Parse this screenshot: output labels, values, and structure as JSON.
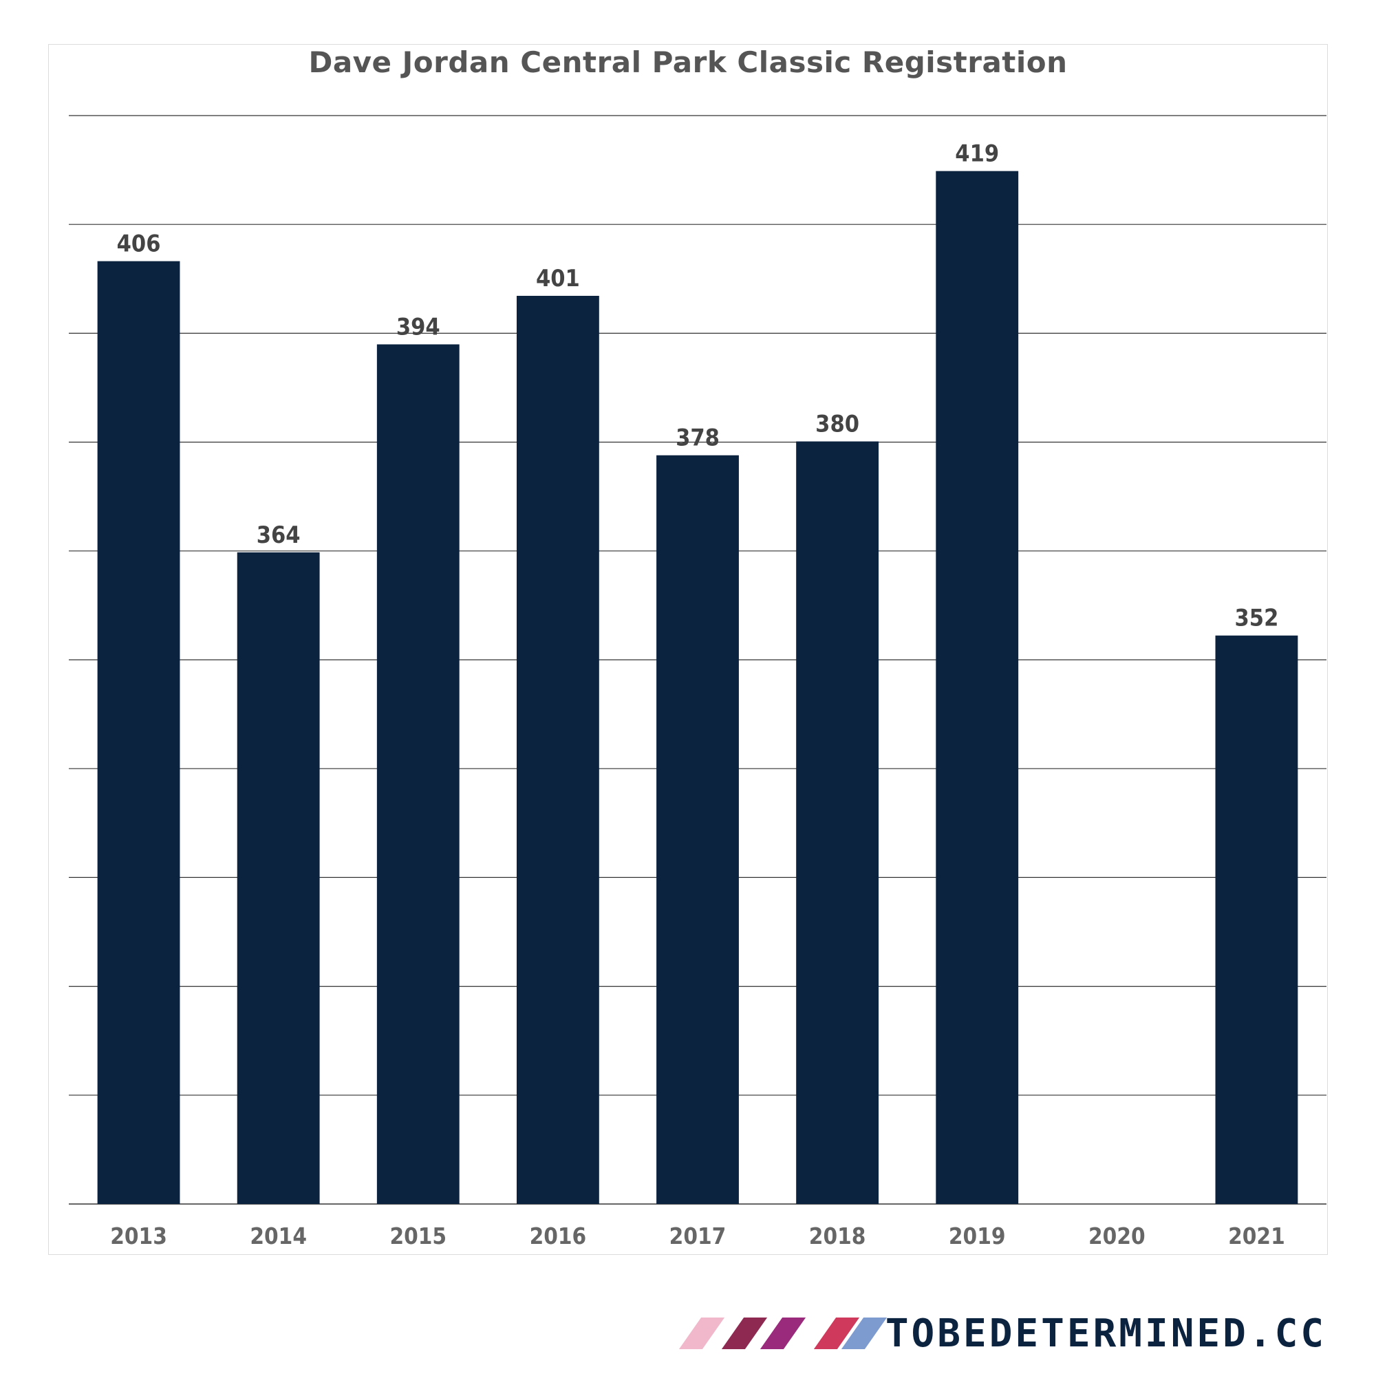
{
  "chart_data": {
    "type": "bar",
    "title": "Dave Jordan Central Park Classic Registration",
    "categories": [
      "2013",
      "2014",
      "2015",
      "2016",
      "2017",
      "2018",
      "2019",
      "2020",
      "2021"
    ],
    "values": [
      406,
      364,
      394,
      401,
      378,
      380,
      419,
      null,
      352
    ],
    "data_labels": [
      "406",
      "364",
      "394",
      "401",
      "378",
      "380",
      "419",
      "",
      "352"
    ],
    "xlabel": "",
    "ylabel": "",
    "ylim": [
      270,
      427
    ],
    "y_gridlines": [
      270,
      285.7,
      301.4,
      317.1,
      332.8,
      348.5,
      364.2,
      379.9,
      395.6,
      411.3,
      427
    ],
    "grid": true,
    "legend": "none",
    "bar_color": "#0c2340",
    "label_color": "#444444",
    "tick_color": "#666666",
    "grid_color": "#333333"
  },
  "footer": {
    "brand_text": "TOBEDETERMINED.CC",
    "stripe_colors": [
      "#f1b8cc",
      "#8e2a52",
      "#9a2a7c",
      "#cf3a5c",
      "#7e9bd0"
    ]
  }
}
